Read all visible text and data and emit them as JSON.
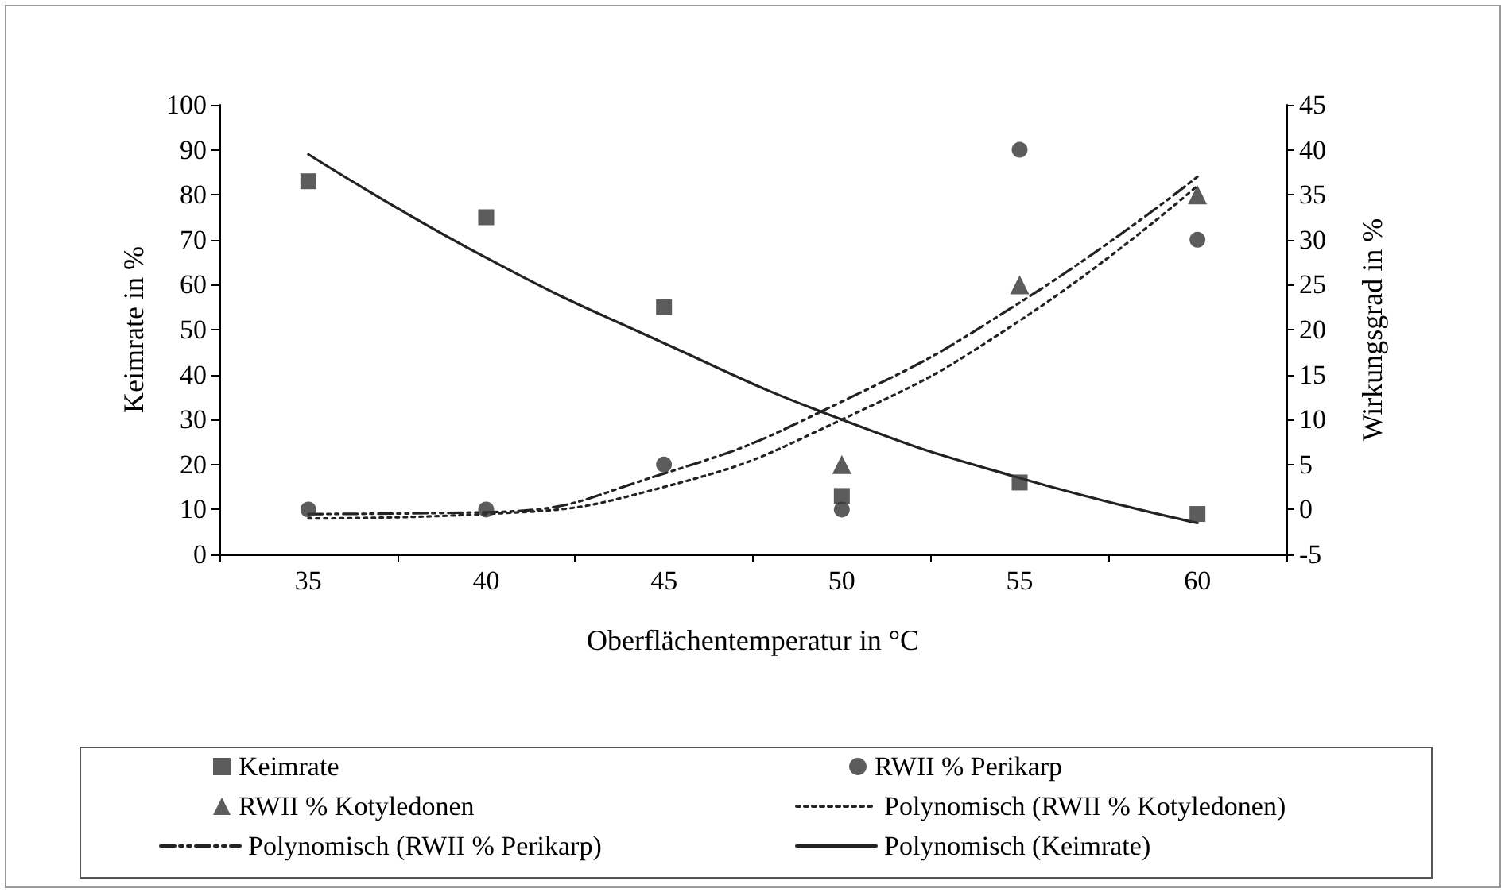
{
  "chart_data": {
    "type": "scatter",
    "xlabel": "Oberflächentemperatur in °C",
    "ylabel": "Keimrate in %",
    "y2label": "Wirkungsgrad in %",
    "categories": [
      "35",
      "40",
      "45",
      "50",
      "55",
      "60"
    ],
    "ylim": [
      0,
      100
    ],
    "yticks": [
      0,
      10,
      20,
      30,
      40,
      50,
      60,
      70,
      80,
      90,
      100
    ],
    "y2lim": [
      -5,
      45
    ],
    "y2ticks": [
      -5,
      0,
      5,
      10,
      15,
      20,
      25,
      30,
      35,
      40,
      45
    ],
    "grid": false,
    "legend": "bottom",
    "series": [
      {
        "name": "Keimrate",
        "marker": "square",
        "color": "#333333",
        "values": [
          83,
          75,
          55,
          13,
          16,
          9
        ]
      },
      {
        "name": "RWII % Perikarp",
        "marker": "circle",
        "axis": "y2",
        "color": "#333333",
        "values": [
          0,
          0,
          5,
          0,
          40,
          30
        ]
      },
      {
        "name": "RWII % Kotyledonen",
        "marker": "triangle",
        "axis": "y2",
        "color": "#333333",
        "values": [
          null,
          null,
          null,
          5,
          25,
          35
        ]
      },
      {
        "name": "Polynomisch (RWII % Kotyledonen)",
        "type": "line",
        "marker": "none",
        "line_style": "dotted",
        "axis": "y2",
        "color": "#222222",
        "values": [
          -1,
          -0.5,
          2.5,
          10,
          21,
          36
        ]
      },
      {
        "name": "Polynomisch (RWII % Perikarp)",
        "type": "line",
        "marker": "none",
        "line_style": "dashed",
        "axis": "y2",
        "color": "#222222",
        "values": [
          -0.5,
          -0.3,
          4,
          12,
          23,
          37
        ]
      },
      {
        "name": "Polynomisch (Keimrate)",
        "type": "line",
        "marker": "none",
        "line_style": "solid",
        "color": "#222222",
        "values": [
          89,
          66,
          47,
          30,
          17,
          7
        ]
      }
    ]
  }
}
